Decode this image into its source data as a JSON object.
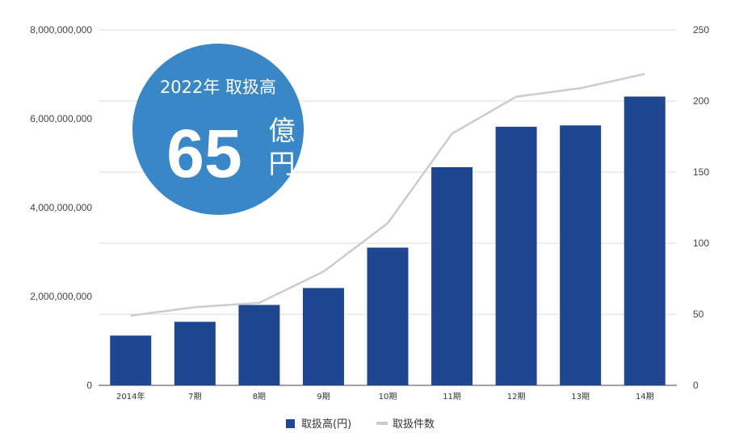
{
  "chart_data": {
    "type": "bar",
    "categories": [
      "2014年",
      "7期",
      "8期",
      "9期",
      "10期",
      "11期",
      "12期",
      "13期",
      "14期"
    ],
    "series": [
      {
        "name": "取扱高(円)",
        "type": "bar",
        "axis": "left",
        "color": "#1f4690",
        "values": [
          1120000000,
          1430000000,
          1810000000,
          2190000000,
          3100000000,
          4910000000,
          5820000000,
          5850000000,
          6500000000
        ]
      },
      {
        "name": "取扱件数",
        "type": "line",
        "axis": "right",
        "color": "#cccccc",
        "values": [
          49,
          55,
          58,
          80,
          114,
          177,
          203,
          209,
          219
        ]
      }
    ],
    "y_left": {
      "ylim": [
        0,
        8000000000
      ],
      "ticks": [
        "0",
        "2,000,000,000",
        "4,000,000,000",
        "6,000,000,000",
        "8,000,000,000"
      ],
      "tick_values": [
        0,
        2000000000,
        4000000000,
        6000000000,
        8000000000
      ]
    },
    "y_right": {
      "ylim": [
        0,
        250
      ],
      "ticks": [
        "0",
        "50",
        "100",
        "150",
        "200",
        "250"
      ],
      "tick_values": [
        0,
        50,
        100,
        150,
        200,
        250
      ]
    },
    "grid": true,
    "legend_position": "bottom-center"
  },
  "badge": {
    "year_text": "2022年 取扱高",
    "value": "65",
    "unit_top": "億",
    "unit_bottom": "円",
    "color": "#3a87c8"
  }
}
